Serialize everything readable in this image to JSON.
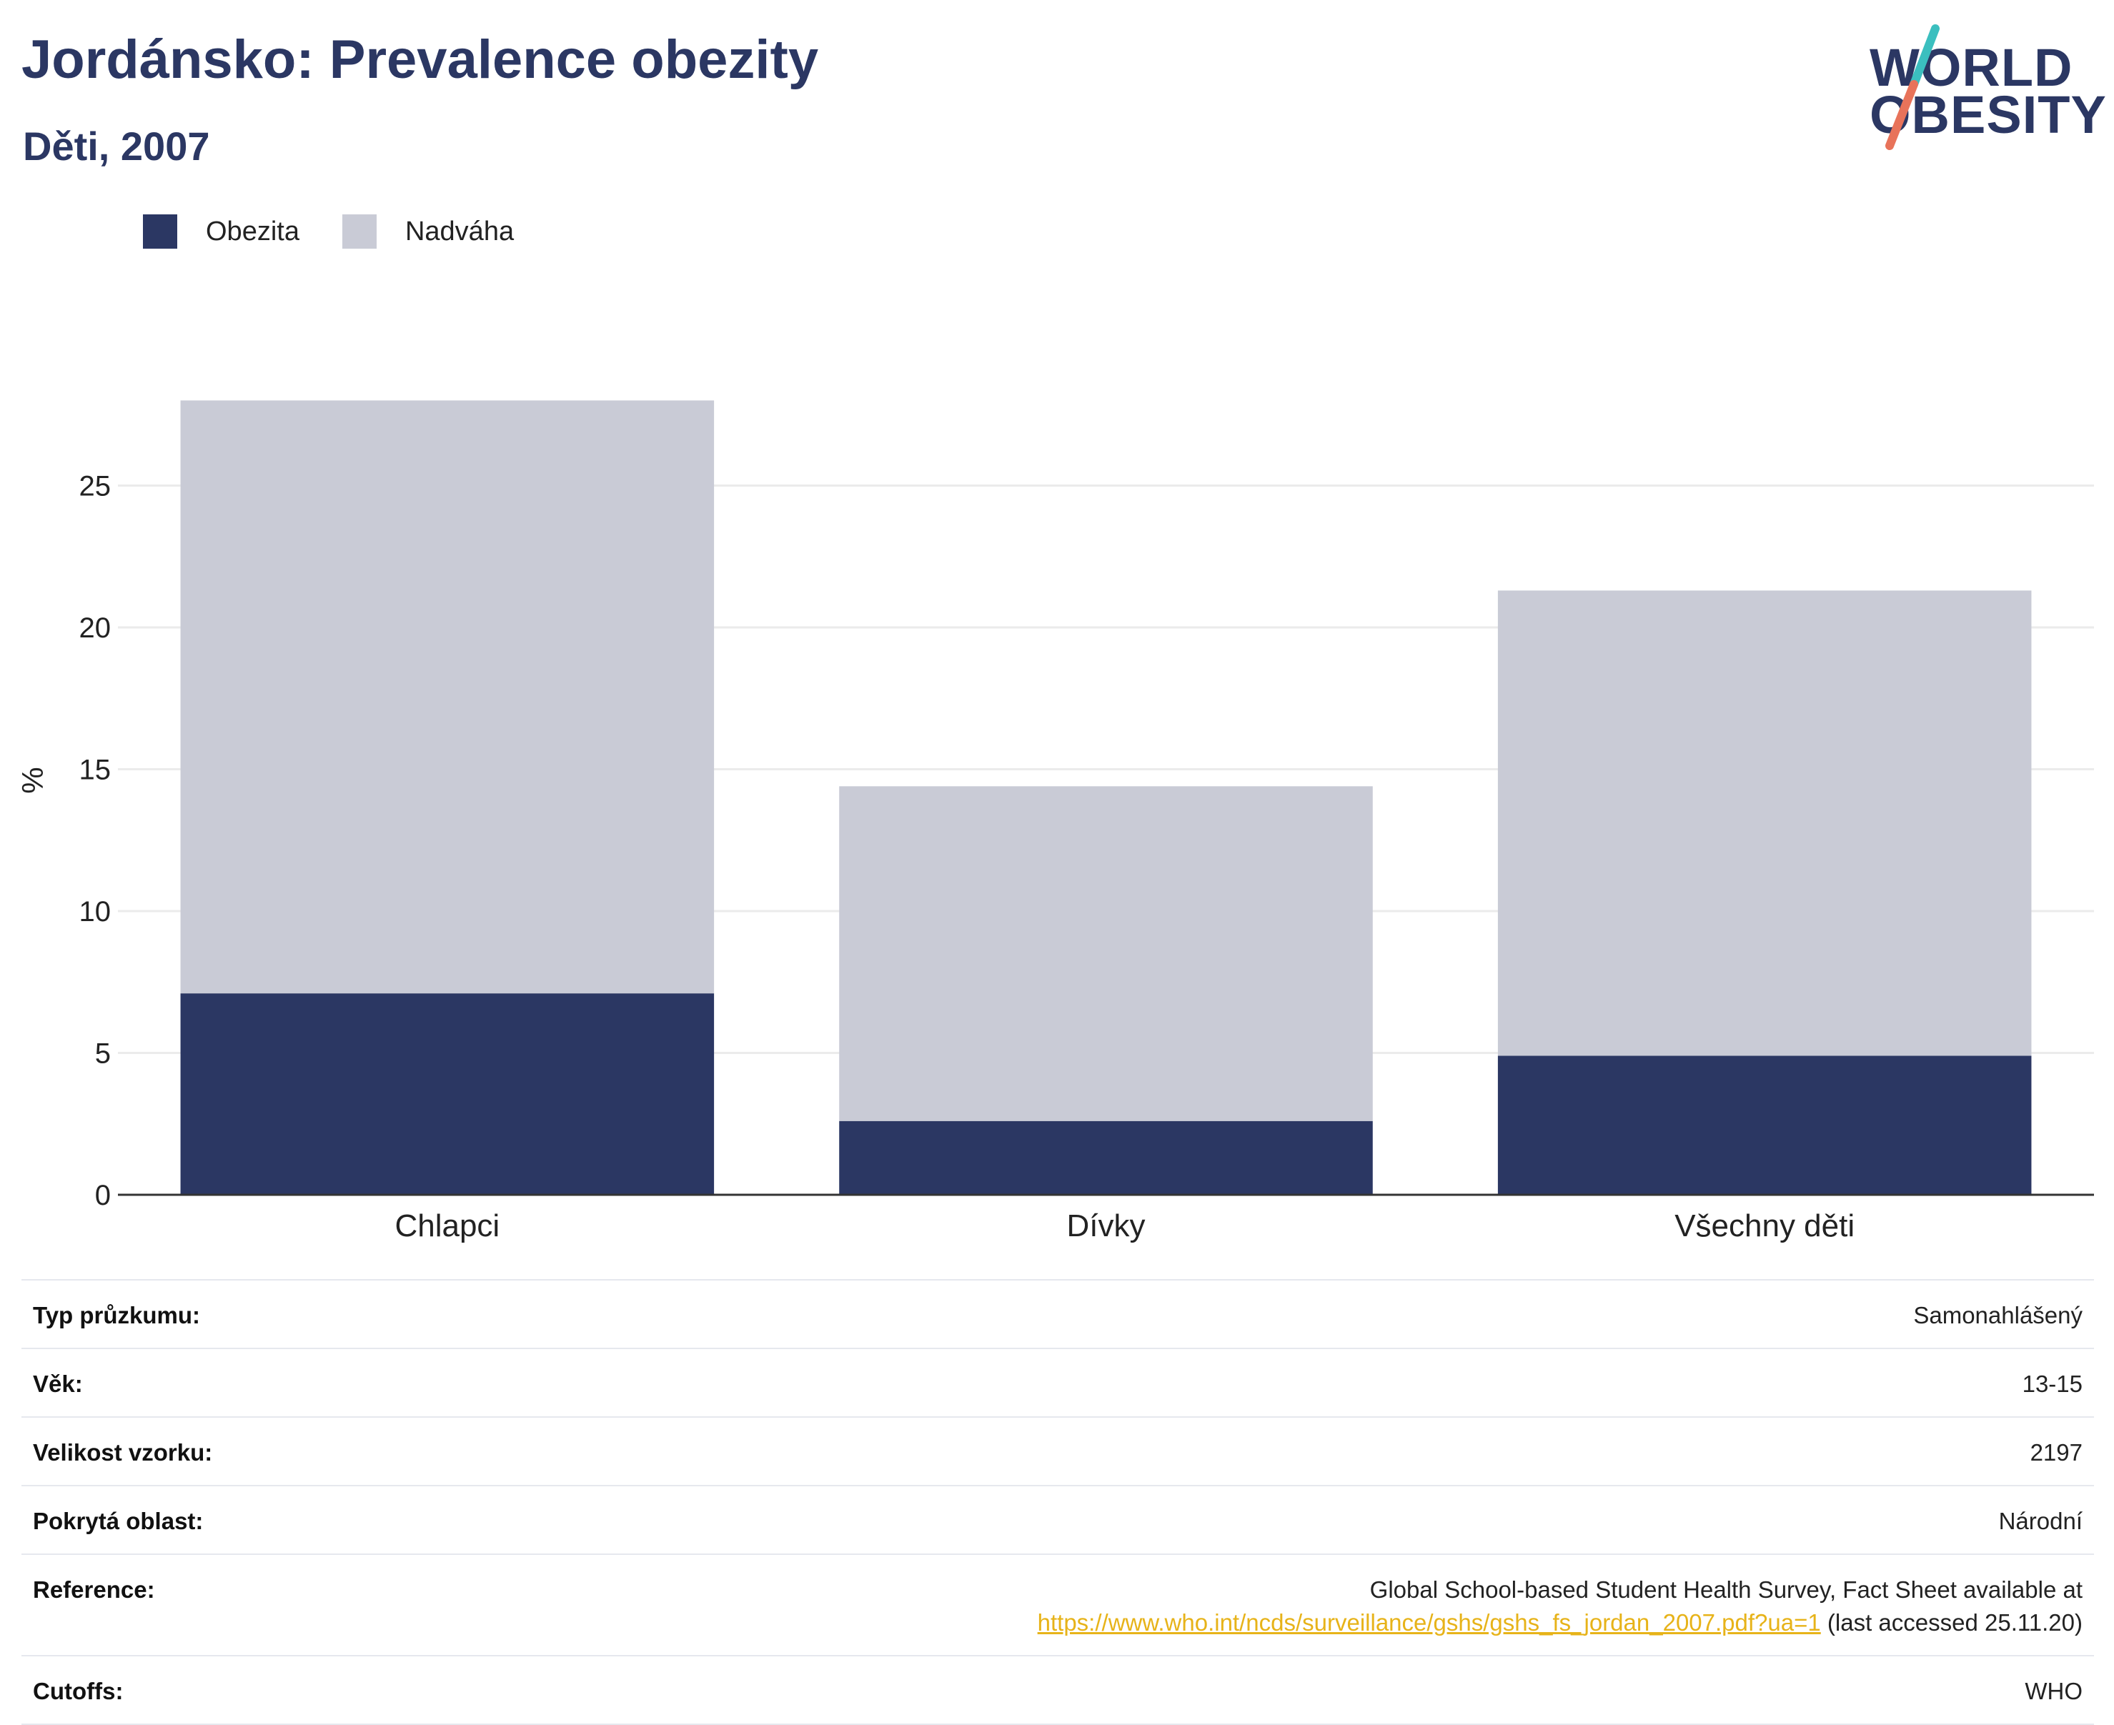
{
  "header": {
    "title": "Jordánsko: Prevalence obezity",
    "subtitle": "Děti, 2007"
  },
  "logo": {
    "line1": "WORLD",
    "line2": "OBESITY",
    "colors": {
      "text": "#2b3763",
      "slash_top": "#3bbfbf",
      "slash_bottom": "#e8735a"
    }
  },
  "colors": {
    "obesity": "#2b3763",
    "overweight": "#c9cbd6",
    "grid": "#ebebeb",
    "axis": "#333333"
  },
  "legend": {
    "items": [
      {
        "label": "Obezita",
        "color": "#2b3763"
      },
      {
        "label": "Nadváha",
        "color": "#c9cbd6"
      }
    ]
  },
  "chart_data": {
    "type": "bar",
    "stacked": true,
    "categories": [
      "Chlapci",
      "Dívky",
      "Všechny děti"
    ],
    "series": [
      {
        "name": "Obezita",
        "values": [
          7.1,
          2.6,
          4.9
        ],
        "color": "#2b3763"
      },
      {
        "name": "Nadváha",
        "values": [
          20.9,
          11.8,
          16.4
        ],
        "color": "#c9cbd6"
      }
    ],
    "ylabel": "%",
    "yticks": [
      0,
      5,
      10,
      15,
      20,
      25
    ],
    "ylim": [
      0,
      30
    ],
    "grid": true,
    "legend_position": "top-left"
  },
  "info": {
    "rows": [
      {
        "label": "Typ průzkumu:",
        "value": "Samonahlášený"
      },
      {
        "label": "Věk:",
        "value": "13-15"
      },
      {
        "label": "Velikost vzorku:",
        "value": "2197"
      },
      {
        "label": "Pokrytá oblast:",
        "value": "Národní"
      }
    ],
    "reference": {
      "label": "Reference:",
      "line1": "Global School-based Student Health Survey, Fact Sheet available at",
      "link": "https://www.who.int/ncds/surveillance/gshs/gshs_fs_jordan_2007.pdf?ua=1",
      "suffix": " (last accessed 25.11.20)"
    },
    "cutoffs": {
      "label": "Cutoffs:",
      "value": "WHO"
    }
  }
}
